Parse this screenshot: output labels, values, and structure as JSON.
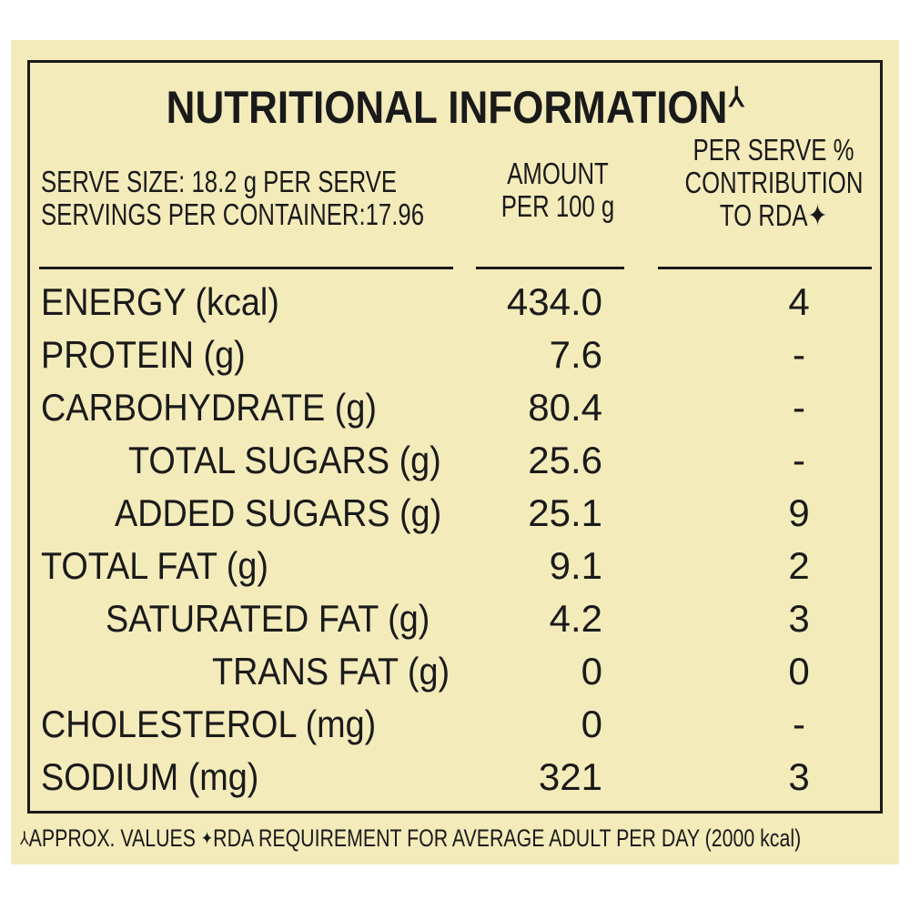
{
  "label": {
    "title": "NUTRITIONAL INFORMATION",
    "title_mark": "⅄",
    "serve_size": "SERVE SIZE: 18.2 g PER SERVE",
    "servings": "SERVINGS PER CONTAINER:17.96",
    "amount_header_1": "AMOUNT",
    "amount_header_2": "PER 100 g",
    "rda_header_1": "PER SERVE %",
    "rda_header_2": "CONTRIBUTION",
    "rda_header_3": "TO RDA✦",
    "rows": [
      {
        "name": "ENERGY (kcal)",
        "amount": "434.0",
        "rda": "4"
      },
      {
        "name": "PROTEIN (g)",
        "amount": "7.6",
        "rda": "-"
      },
      {
        "name": "CARBOHYDRATE (g)",
        "amount": "80.4",
        "rda": "-"
      },
      {
        "name": "TOTAL SUGARS (g)",
        "amount": "25.6",
        "rda": "-"
      },
      {
        "name": "ADDED SUGARS (g)",
        "amount": "25.1",
        "rda": "9"
      },
      {
        "name": "TOTAL FAT (g)",
        "amount": "9.1",
        "rda": "2"
      },
      {
        "name": "SATURATED FAT (g)",
        "amount": "4.2",
        "rda": "3"
      },
      {
        "name": "TRANS FAT (g)",
        "amount": "0",
        "rda": "0"
      },
      {
        "name": "CHOLESTEROL (mg)",
        "amount": "0",
        "rda": "-"
      },
      {
        "name": "SODIUM (mg)",
        "amount": "321",
        "rda": "3"
      }
    ],
    "footnote_mark_1": "⅄",
    "footnote_1": "APPROX. VALUES ",
    "footnote_mark_2": "✦",
    "footnote_2": "RDA REQUIREMENT FOR AVERAGE ADULT PER DAY (2000 kcal)"
  },
  "colors": {
    "background": "#f4ebbb",
    "ink": "#1a1a1a"
  }
}
